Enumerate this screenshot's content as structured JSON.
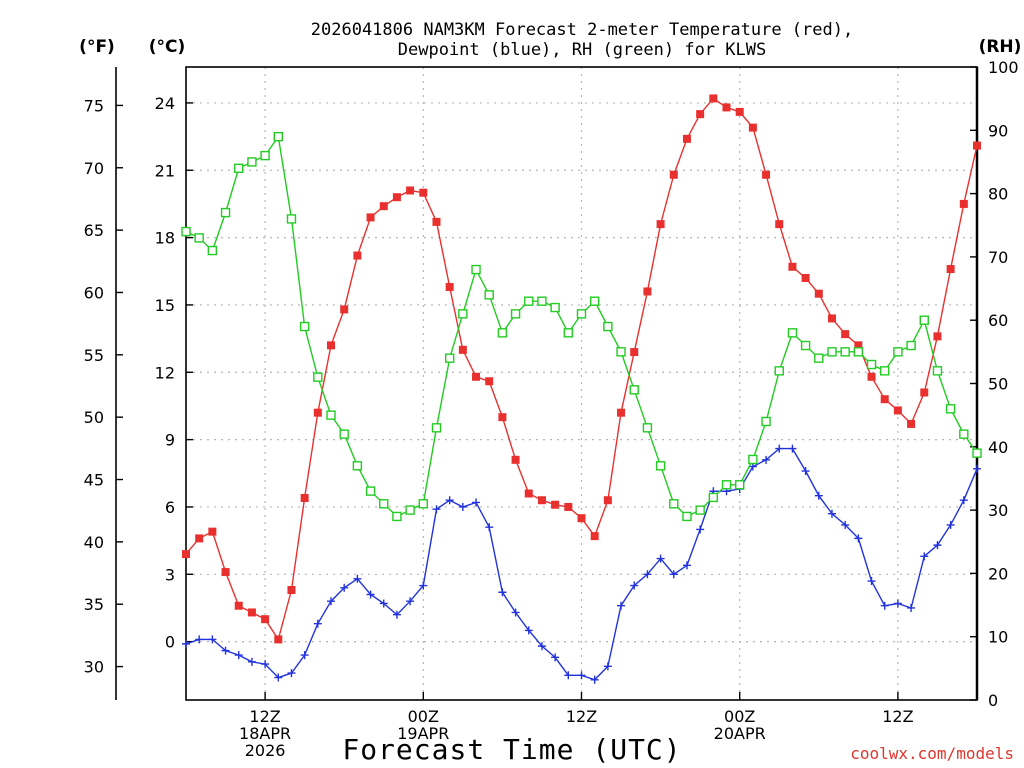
{
  "chart_data": {
    "type": "line",
    "title": "2026041806 NAM3KM Forecast 2-meter Temperature (red),",
    "subtitle": "Dewpoint (blue), RH (green) for KLWS",
    "xlabel": "Forecast Time (UTC)",
    "credit": "coolwx.com/models",
    "units": {
      "fahrenheit": "(°F)",
      "celsius": "(°C)",
      "rh": "(RH)"
    },
    "x_hours_start": 6,
    "x_hours_end": 66,
    "x_ticks": [
      {
        "hour": 12,
        "lines": [
          "12Z",
          "18APR",
          "2026"
        ]
      },
      {
        "hour": 24,
        "lines": [
          "00Z",
          "19APR"
        ]
      },
      {
        "hour": 36,
        "lines": [
          "12Z"
        ]
      },
      {
        "hour": 48,
        "lines": [
          "00Z",
          "20APR"
        ]
      },
      {
        "hour": 60,
        "lines": [
          "12Z"
        ]
      }
    ],
    "y_celsius_range": [
      -2.6,
      25.6
    ],
    "y_celsius_ticks": [
      0,
      3,
      6,
      9,
      12,
      15,
      18,
      21,
      24
    ],
    "y_fahrenheit_ticks": [
      30,
      35,
      40,
      45,
      50,
      55,
      60,
      65,
      70,
      75
    ],
    "y_rh_range": [
      0,
      100
    ],
    "y_rh_ticks": [
      0,
      10,
      20,
      30,
      40,
      50,
      60,
      70,
      80,
      90,
      100
    ],
    "grid": true,
    "series": [
      {
        "name": "Temperature",
        "axis": "celsius",
        "color": "#e8312f",
        "marker": "filled-square",
        "values": [
          3.9,
          4.6,
          4.9,
          3.1,
          1.6,
          1.3,
          1.0,
          0.1,
          2.3,
          6.4,
          10.2,
          13.2,
          14.8,
          17.2,
          18.9,
          19.4,
          19.8,
          20.1,
          20.0,
          18.7,
          15.8,
          13.0,
          11.8,
          11.6,
          10.0,
          8.1,
          6.6,
          6.3,
          6.1,
          6.0,
          5.5,
          4.7,
          6.3,
          10.2,
          12.9,
          15.6,
          18.6,
          20.8,
          22.4,
          23.5,
          24.2,
          23.8,
          23.6,
          22.9,
          20.8,
          18.6,
          16.7,
          16.2,
          15.5,
          14.4,
          13.7,
          13.2,
          11.8,
          10.8,
          10.3,
          9.7,
          11.1,
          13.6,
          16.6,
          19.5,
          22.1
        ]
      },
      {
        "name": "Dewpoint",
        "axis": "celsius",
        "color": "#2233dd",
        "marker": "plus",
        "values": [
          -0.1,
          0.1,
          0.1,
          -0.4,
          -0.6,
          -0.9,
          -1.0,
          -1.6,
          -1.4,
          -0.6,
          0.8,
          1.8,
          2.4,
          2.8,
          2.1,
          1.7,
          1.2,
          1.8,
          2.5,
          5.9,
          6.3,
          6.0,
          6.2,
          5.1,
          2.2,
          1.3,
          0.5,
          -0.2,
          -0.7,
          -1.5,
          -1.5,
          -1.7,
          -1.1,
          1.6,
          2.5,
          3.0,
          3.7,
          3.0,
          3.4,
          5.0,
          6.7,
          6.7,
          6.8,
          7.8,
          8.1,
          8.6,
          8.6,
          7.6,
          6.5,
          5.7,
          5.2,
          4.6,
          2.7,
          1.6,
          1.7,
          1.5,
          3.8,
          4.3,
          5.2,
          6.3,
          7.7
        ]
      },
      {
        "name": "RH",
        "axis": "rh",
        "color": "#22cc22",
        "marker": "open-square",
        "values": [
          74,
          73,
          71,
          77,
          84,
          85,
          86,
          89,
          76,
          59,
          51,
          45,
          42,
          37,
          33,
          31,
          29,
          30,
          31,
          43,
          54,
          61,
          68,
          64,
          58,
          61,
          63,
          63,
          62,
          58,
          61,
          63,
          59,
          55,
          49,
          43,
          37,
          31,
          29,
          30,
          32,
          34,
          34,
          38,
          44,
          52,
          58,
          56,
          54,
          55,
          55,
          55,
          53,
          52,
          55,
          56,
          60,
          52,
          46,
          42,
          39
        ]
      }
    ]
  }
}
